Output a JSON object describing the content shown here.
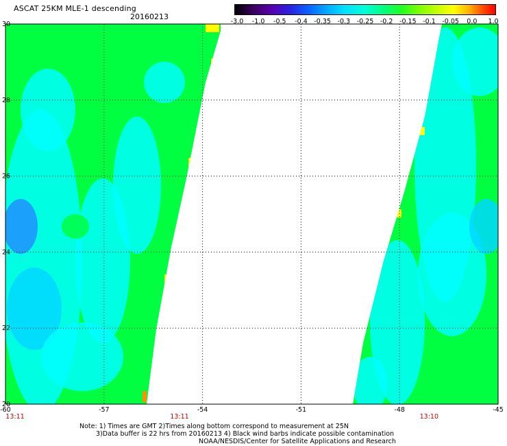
{
  "header": {
    "title": "ASCAT 25KM MLE-1 descending",
    "date": "20160213"
  },
  "colorbar": {
    "labels": [
      "-3.0",
      "-1.0",
      "-0.5",
      "-0.4",
      "-0.35",
      "-0.3",
      "-0.25",
      "-0.2",
      "-0.15",
      "-0.1",
      "-0.05",
      "0.0",
      "1.0"
    ]
  },
  "map": {
    "lat_labels": [
      "30",
      "28",
      "26",
      "24",
      "22",
      "20"
    ],
    "lon_labels": [
      "-60",
      "-57",
      "-54",
      "-51",
      "-48",
      "-45"
    ],
    "lat_range": [
      20,
      30
    ],
    "lon_range": [
      -60,
      -45
    ],
    "time_labels": [
      {
        "text": "13:11",
        "lon": -60
      },
      {
        "text": "13:11",
        "lon": -54.7
      },
      {
        "text": "13:10",
        "lon": -47.1
      }
    ],
    "colors": {
      "green": "#00ff40",
      "cyan": "#00ffff",
      "light_blue": "#00d8ff",
      "blue": "#2090ff",
      "yellow": "#ffff00",
      "orange": "#ff9000",
      "time_label": "#cc0000"
    }
  },
  "notes": {
    "line1": "Note: 1) Times are GMT 2)Times along bottom correspond to measurement at 25N",
    "line2": "3)Data buffer is 22 hrs from 20160213 4) Black wind barbs indicate possible contamination",
    "line3": "NOAA/NESDIS/Center for Satellite Applications and Research"
  }
}
